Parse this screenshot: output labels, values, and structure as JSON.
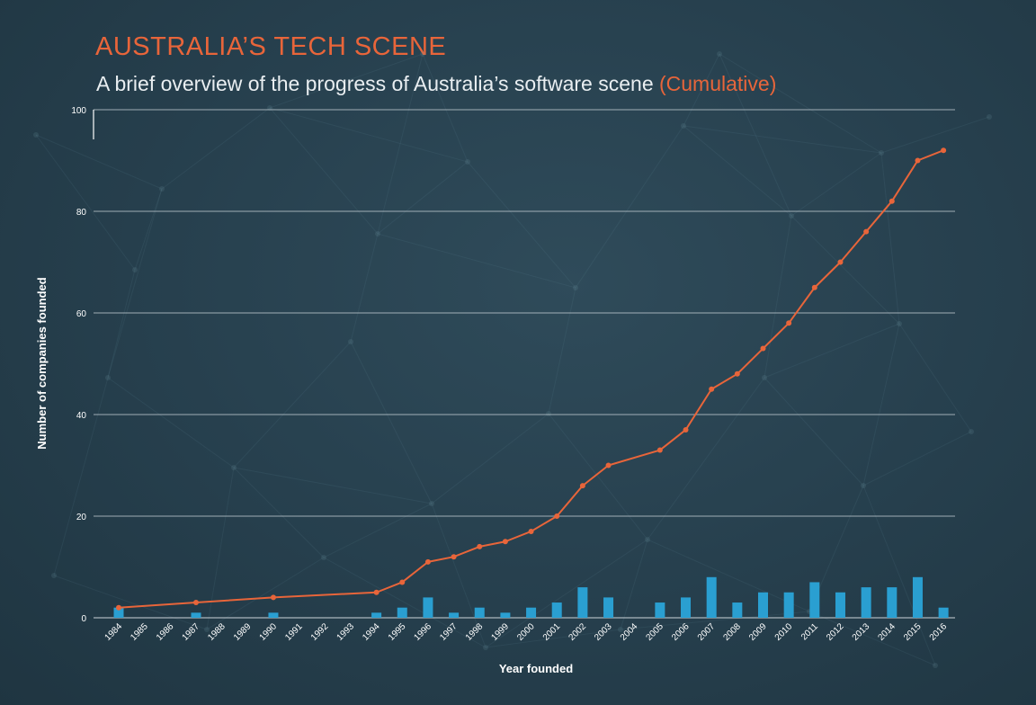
{
  "header": {
    "title": "AUSTRALIA’S TECH SCENE",
    "subtitle_main": "A brief overview of the progress of Australia’s software scene",
    "subtitle_accent": "(Cumulative)"
  },
  "colors": {
    "background": "#263f4d",
    "title": "#e8653a",
    "line": "#e8653a",
    "bars": "#2a9fd1",
    "grid": "#c9d3d8",
    "text": "#ffffff"
  },
  "chart_data": {
    "type": "bar+line",
    "xlabel": "Year founded",
    "ylabel": "Number of companies founded",
    "ylim": [
      0,
      100
    ],
    "yticks": [
      0,
      20,
      40,
      60,
      80,
      100
    ],
    "grid": true,
    "categories": [
      "1984",
      "1985",
      "1986",
      "1987",
      "1988",
      "1989",
      "1990",
      "1991",
      "1992",
      "1993",
      "1994",
      "1995",
      "1996",
      "1997",
      "1998",
      "1999",
      "2000",
      "2001",
      "2002",
      "2003",
      "2004",
      "2005",
      "2006",
      "2007",
      "2008",
      "2009",
      "2010",
      "2011",
      "2012",
      "2013",
      "2014",
      "2015",
      "2016"
    ],
    "series": [
      {
        "type": "bar",
        "values": [
          2,
          0,
          0,
          1,
          0,
          0,
          1,
          0,
          0,
          0,
          1,
          2,
          4,
          1,
          2,
          1,
          2,
          3,
          6,
          4,
          0,
          3,
          4,
          8,
          3,
          5,
          5,
          7,
          5,
          6,
          6,
          8,
          2
        ]
      },
      {
        "type": "line",
        "x": [
          "1984",
          "1987",
          "1990",
          "1994",
          "1995",
          "1996",
          "1997",
          "1998",
          "1999",
          "2000",
          "2001",
          "2002",
          "2003",
          "2005",
          "2006",
          "2007",
          "2008",
          "2009",
          "2010",
          "2011",
          "2012",
          "2013",
          "2014",
          "2015",
          "2016"
        ],
        "values": [
          2,
          3,
          4,
          5,
          7,
          11,
          12,
          14,
          15,
          17,
          20,
          26,
          30,
          33,
          37,
          45,
          48,
          53,
          58,
          65,
          70,
          76,
          82,
          90,
          92
        ]
      }
    ]
  }
}
